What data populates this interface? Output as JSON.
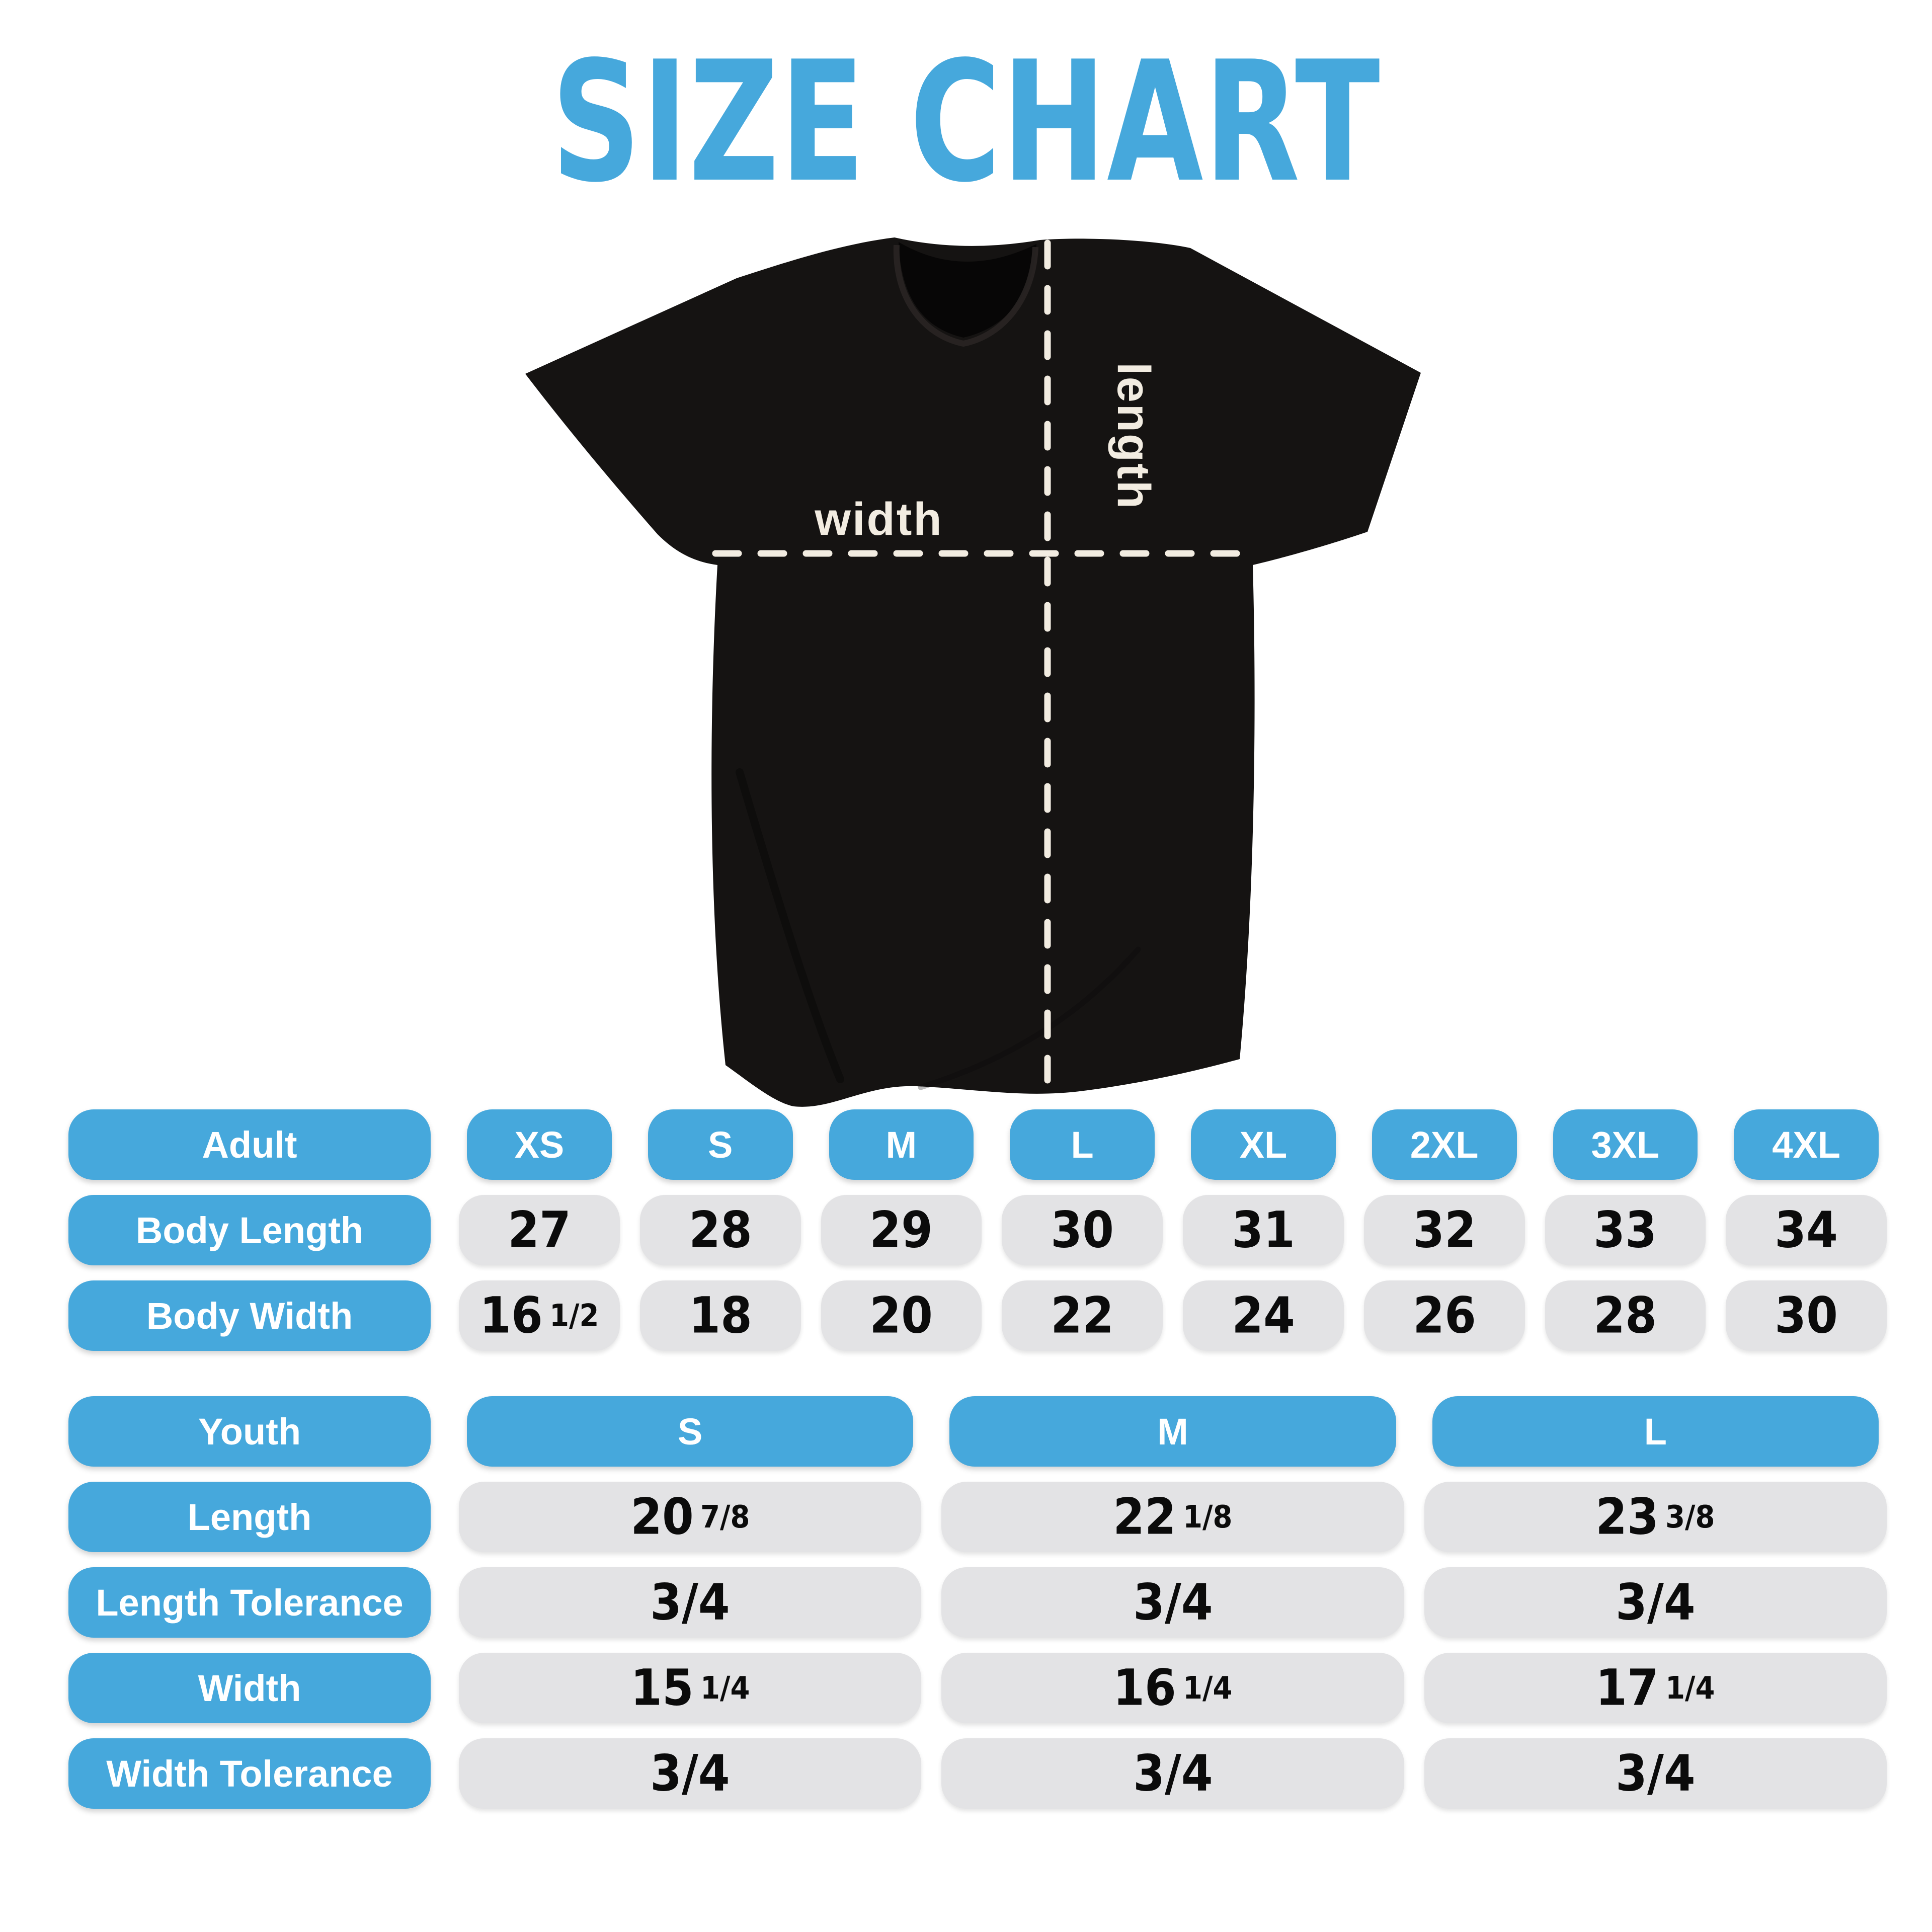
{
  "title": "SIZE CHART",
  "colors": {
    "accent_blue": "#46A8DC",
    "pill_gray": "#E3E3E5",
    "shirt_black": "#151312",
    "cream": "#F2ECE1"
  },
  "diagram": {
    "width_label": "width",
    "length_label": "length"
  },
  "adult_table": {
    "header": {
      "label": "Adult",
      "sizes": [
        "XS",
        "S",
        "M",
        "L",
        "XL",
        "2XL",
        "3XL",
        "4XL"
      ]
    },
    "rows": [
      {
        "label": "Body Length",
        "values": [
          {
            "main": "27"
          },
          {
            "main": "28"
          },
          {
            "main": "29"
          },
          {
            "main": "30"
          },
          {
            "main": "31"
          },
          {
            "main": "32"
          },
          {
            "main": "33"
          },
          {
            "main": "34"
          }
        ]
      },
      {
        "label": "Body Width",
        "values": [
          {
            "main": "16",
            "frac": "1/2"
          },
          {
            "main": "18"
          },
          {
            "main": "20"
          },
          {
            "main": "22"
          },
          {
            "main": "24"
          },
          {
            "main": "26"
          },
          {
            "main": "28"
          },
          {
            "main": "30"
          }
        ]
      }
    ]
  },
  "youth_table": {
    "header": {
      "label": "Youth",
      "sizes": [
        "S",
        "M",
        "L"
      ]
    },
    "rows": [
      {
        "label": "Length",
        "values": [
          {
            "main": "20",
            "frac": "7/8"
          },
          {
            "main": "22",
            "frac": "1/8"
          },
          {
            "main": "23",
            "frac": "3/8"
          }
        ]
      },
      {
        "label": "Length Tolerance",
        "values": [
          {
            "main": "3/4"
          },
          {
            "main": "3/4"
          },
          {
            "main": "3/4"
          }
        ]
      },
      {
        "label": "Width",
        "values": [
          {
            "main": "15",
            "frac": "1/4"
          },
          {
            "main": "16",
            "frac": "1/4"
          },
          {
            "main": "17",
            "frac": "1/4"
          }
        ]
      },
      {
        "label": "Width Tolerance",
        "values": [
          {
            "main": "3/4"
          },
          {
            "main": "3/4"
          },
          {
            "main": "3/4"
          }
        ]
      }
    ]
  }
}
